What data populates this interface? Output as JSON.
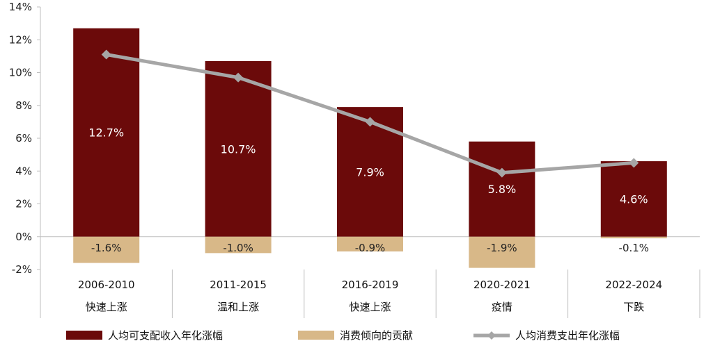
{
  "chart_data": {
    "type": "bar",
    "categories": [
      "2006-2010",
      "2011-2015",
      "2016-2019",
      "2020-2021",
      "2022-2024"
    ],
    "category_sublabels": [
      "快速上涨",
      "温和上涨",
      "快速上涨",
      "疫情",
      "下跌"
    ],
    "series": [
      {
        "name": "人均可支配收入年化涨幅",
        "kind": "bar",
        "color": "#6b0a0a",
        "values": [
          12.7,
          10.7,
          7.9,
          5.8,
          4.6
        ],
        "labels": [
          "12.7%",
          "10.7%",
          "7.9%",
          "5.8%",
          "4.6%"
        ]
      },
      {
        "name": "消费倾向的贡献",
        "kind": "bar",
        "color": "#d8b888",
        "values": [
          -1.6,
          -1.0,
          -0.9,
          -1.9,
          -0.1
        ],
        "labels": [
          "-1.6%",
          "-1.0%",
          "-0.9%",
          "-1.9%",
          "-0.1%"
        ]
      },
      {
        "name": "人均消费支出年化涨幅",
        "kind": "line",
        "color": "#a6a6a6",
        "values": [
          11.1,
          9.7,
          7.0,
          3.9,
          4.5
        ]
      }
    ],
    "yaxis": {
      "min": -2,
      "max": 14,
      "step": 2,
      "tick_labels": [
        "-2%",
        "0%",
        "2%",
        "4%",
        "6%",
        "8%",
        "10%",
        "12%",
        "14%"
      ]
    },
    "grid": false,
    "legend": "bottom"
  }
}
